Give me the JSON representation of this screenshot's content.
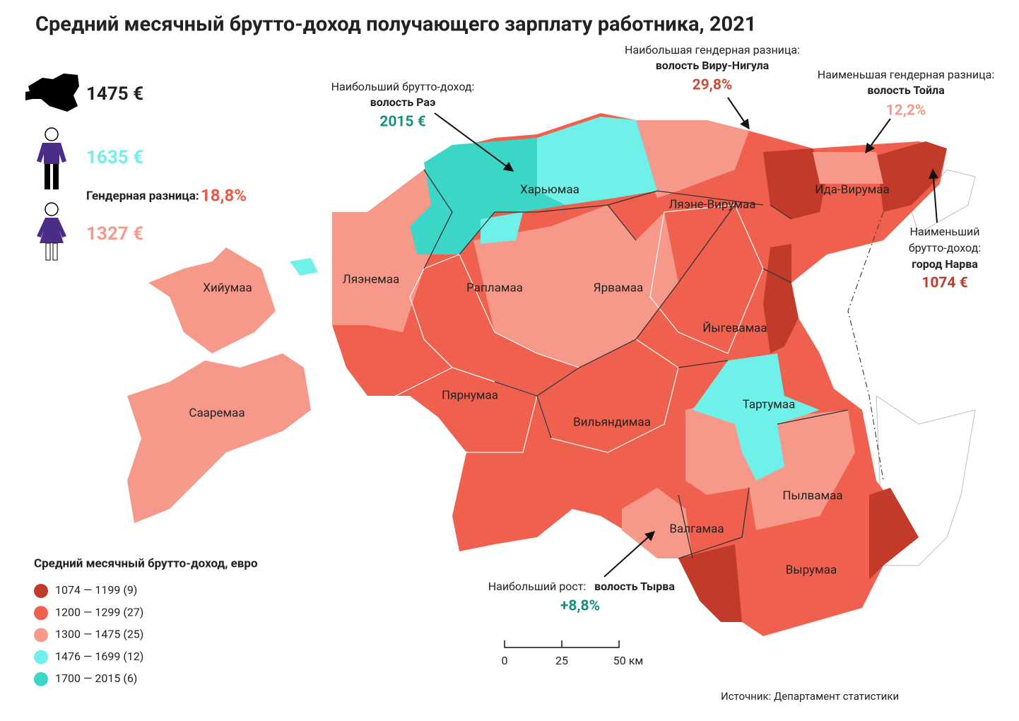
{
  "title": "Средний месячный брутто-доход получающего зарплату работника, 2021",
  "summary": {
    "total": "1475 €",
    "men": "1635 €",
    "gap_label": "Гендерная разница:",
    "gap": "18,8%",
    "women": "1327 €"
  },
  "regions": [
    "Харьюмаа",
    "Ляэне-Вирумаа",
    "Ида-Вирумаа",
    "Хийумаа",
    "Ляэнемаа",
    "Рапламаа",
    "Ярвамаа",
    "Йыгевамаа",
    "Сааремаа",
    "Пярнумаа",
    "Тартумаа",
    "Вильяндимаа",
    "Пылвамаа",
    "Валгамаа",
    "Вырумаа"
  ],
  "annotations": [
    {
      "text": "Наибольший брутто-доход:",
      "place": "волость Раэ",
      "value": "2015 €"
    },
    {
      "text": "Наибольшая гендерная разница:",
      "place": "волость Виру-Нигула",
      "value": "29,8%"
    },
    {
      "text": "Наименьшая гендерная разница:",
      "place": "волость Тойла",
      "value": "12,2%"
    },
    {
      "text": "Наименьший",
      "text2": "брутто-доход:",
      "place": "город Нарва",
      "value": "1074 €"
    },
    {
      "text": "Наибольший рост:",
      "place": "волость Тырва",
      "value": "+8,8%"
    }
  ],
  "legend": {
    "title": "Средний месячный брутто-доход, евро",
    "items": [
      {
        "label": "1074 — 1199 (9)",
        "color": "#c13a2a"
      },
      {
        "label": "1200 — 1299 (27)",
        "color": "#f0604e"
      },
      {
        "label": "1300 — 1475 (25)",
        "color": "#f7998a"
      },
      {
        "label": "1476 — 1699 (12)",
        "color": "#6ff0e8"
      },
      {
        "label": "1700 — 2015 (6)",
        "color": "#3bd6c6"
      }
    ]
  },
  "scale": [
    "0",
    "25",
    "50 км"
  ],
  "source": "Источник: Департамент статистики"
}
